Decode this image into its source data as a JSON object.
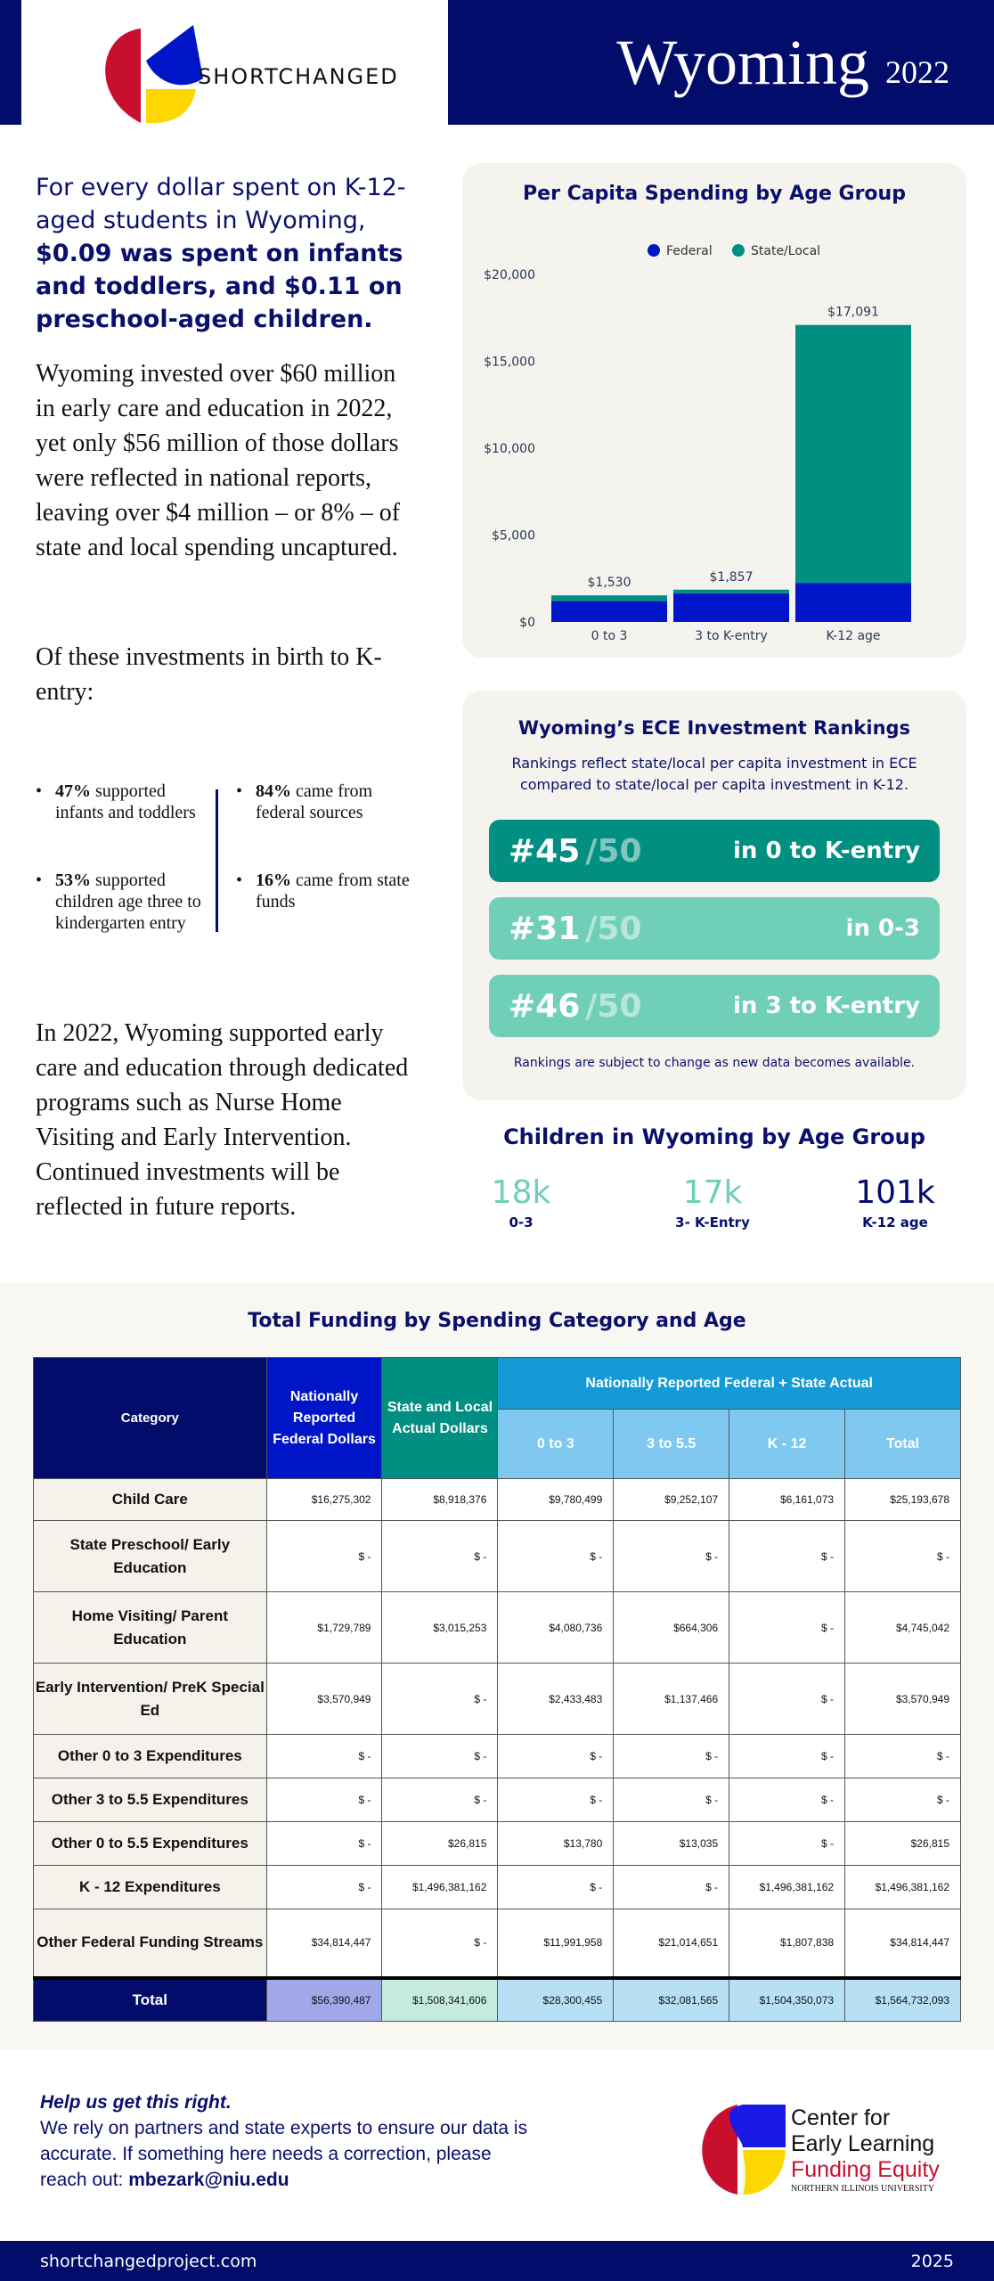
{
  "header": {
    "logo_text": "SHORTCHANGED",
    "state": "Wyoming",
    "year": "2022"
  },
  "intro": {
    "headline_plain": "For every dollar spent on K-12-aged students in Wyoming,",
    "headline_bold": "$0.09 was spent on infants and toddlers, and $0.11 on preschool-aged children.",
    "para1": "Wyoming invested over $60 million in early care and education in 2022, yet only $56 million of those dollars were reflected in national reports, leaving over $4 million – or 8% – of state and local spending uncaptured.",
    "para_of": "Of these investments in birth to K-entry:",
    "bullets": [
      {
        "pct": "47%",
        "text": " supported infants and toddlers"
      },
      {
        "pct": "53%",
        "text": " supported children age three to kindergarten entry"
      },
      {
        "pct": "84%",
        "text": " came from federal sources"
      },
      {
        "pct": "16%",
        "text": " came from state funds"
      }
    ],
    "para3": "In 2022, Wyoming supported early care and education through dedicated programs such as Nurse Home Visiting and Early Intervention. Continued investments will be reflected in future reports."
  },
  "chart_data": {
    "type": "bar",
    "stacked": true,
    "title": "Per Capita Spending by Age Group",
    "categories": [
      "0 to 3",
      "3 to K-entry",
      "K-12 age"
    ],
    "series": [
      {
        "name": "Federal",
        "color": "#0015c8",
        "values": [
          1200,
          1650,
          2250
        ]
      },
      {
        "name": "State/Local",
        "color": "#008f80",
        "values": [
          330,
          207,
          14841
        ]
      }
    ],
    "totals_labels": [
      "$1,530",
      "$1,857",
      "$17,091"
    ],
    "yticks": [
      "$0",
      "$5,000",
      "$10,000",
      "$15,000",
      "$20,000"
    ],
    "ylim": [
      0,
      20000
    ],
    "legend": "top"
  },
  "rankings": {
    "title": "Wyoming’s ECE Investment Rankings",
    "subtitle": "Rankings reflect state/local per capita investment in ECE compared to state/local per capita investment in K-12.",
    "items": [
      {
        "rank": "#45",
        "of": "/50",
        "label": "in 0 to K-entry"
      },
      {
        "rank": "#31",
        "of": "/50",
        "label": "in 0-3"
      },
      {
        "rank": "#46",
        "of": "/50",
        "label": "in 3 to K-entry"
      }
    ],
    "note": "Rankings are subject to change as new data becomes available."
  },
  "children": {
    "title": "Children in Wyoming by Age Group",
    "groups": [
      {
        "value": "18k",
        "label": "0-3"
      },
      {
        "value": "17k",
        "label": "3- K-Entry"
      },
      {
        "value": "101k",
        "label": "K-12 age"
      }
    ]
  },
  "table": {
    "title": "Total Funding by Spending Category and Age",
    "headers": {
      "category": "Category",
      "federal": "Nationally Reported Federal Dollars",
      "state": "State and Local Actual Dollars",
      "group": "Nationally Reported Federal + State Actual",
      "sub": [
        "0 to 3",
        "3 to 5.5",
        "K - 12",
        "Total"
      ]
    },
    "rows": [
      {
        "cat": "Child Care",
        "v": [
          "$16,275,302",
          "$8,918,376",
          "$9,780,499",
          "$9,252,107",
          "$6,161,073",
          "$25,193,678"
        ]
      },
      {
        "cat": "State Preschool/ Early Education",
        "v": [
          "$ -",
          "$ -",
          "$ -",
          "$ -",
          "$ -",
          "$ -"
        ]
      },
      {
        "cat": "Home Visiting/ Parent Education",
        "v": [
          "$1,729,789",
          "$3,015,253",
          "$4,080,736",
          "$664,306",
          "$ -",
          "$4,745,042"
        ]
      },
      {
        "cat": "Early Intervention/ PreK Special Ed",
        "v": [
          "$3,570,949",
          "$ -",
          "$2,433,483",
          "$1,137,466",
          "$ -",
          "$3,570,949"
        ]
      },
      {
        "cat": "Other 0 to 3 Expenditures",
        "v": [
          "$ -",
          "$ -",
          "$ -",
          "$ -",
          "$ -",
          "$ -"
        ]
      },
      {
        "cat": "Other 3 to 5.5 Expenditures",
        "v": [
          "$ -",
          "$ -",
          "$ -",
          "$ -",
          "$ -",
          "$ -"
        ]
      },
      {
        "cat": "Other 0 to 5.5 Expenditures",
        "v": [
          "$ -",
          "$26,815",
          "$13,780",
          "$13,035",
          "$ -",
          "$26,815"
        ]
      },
      {
        "cat": "K - 12 Expenditures",
        "v": [
          "$ -",
          "$1,496,381,162",
          "$ -",
          "$ -",
          "$1,496,381,162",
          "$1,496,381,162"
        ]
      },
      {
        "cat": "Other Federal Funding Streams",
        "v": [
          "$34,814,447",
          "$ -",
          "$11,991,958",
          "$21,014,651",
          "$1,807,838",
          "$34,814,447"
        ]
      }
    ],
    "total": {
      "cat": "Total",
      "v": [
        "$56,390,487",
        "$1,508,341,606",
        "$28,300,455",
        "$32,081,565",
        "$1,504,350,073",
        "$1,564,732,093"
      ]
    }
  },
  "help": {
    "title": "Help us get this right.",
    "body": "We rely on partners and state experts to ensure our data is accurate. If something here needs a correction, please reach out: ",
    "email": "mbezark@niu.edu"
  },
  "cel_logo": {
    "line1": "Center for",
    "line2": "Early Learning",
    "line3": "Funding Equity",
    "line4": "NORTHERN ILLINOIS UNIVERSITY"
  },
  "footer": {
    "site": "shortchangedproject.com",
    "year": "2025"
  }
}
